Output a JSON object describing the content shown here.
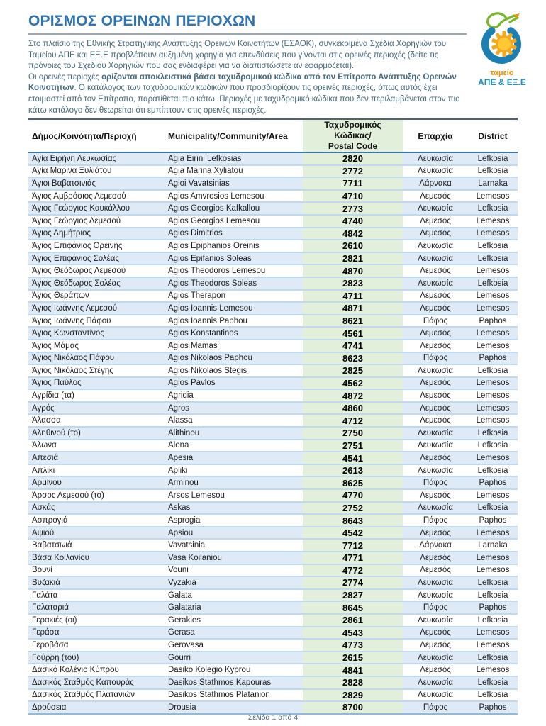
{
  "document": {
    "title": "ΟΡΙΣΜΟΣ ΟΡΕΙΝΩΝ ΠΕΡΙΟΧΩΝ",
    "intro": {
      "paragraph1": "Στο πλαίσιο της Εθνικής Στρατηγικής Ανάπτυξης Ορεινών Κοινοτήτων (ΕΣΑΟΚ), συγκεκριμένα Σχέδια Χορηγιών του Ταμείου ΑΠΕ και ΕΞ.Ε προβλέπουν αυξημένη χορηγία για επενδύσεις που γίνονται στις ορεινές περιοχές (δείτε τις πρόνοιες του Σχεδίου Χορηγιών που σας ενδιαφέρει για να διαπιστώσετε αν εφαρμόζεται).",
      "paragraph2_lead": "Οι ορεινές περιοχές ",
      "paragraph2_bold": "ορίζονται αποκλειστικά βάσει ταχυδρομικού κώδικα από τον Επίτροπο Ανάπτυξης Ορεινών Κοινοτήτων",
      "paragraph2_rest": ". Ο κατάλογος των ταχυδρομικών κωδικών που προσδιορίζουν τις ορεινές περιοχές, όπως αυτός έχει ετοιμαστεί από τον Επίτροπο, παρατίθεται πιο κάτω. Περιοχές με ταχυδρομικό κώδικα που δεν περιλαμβάνεται στον πιο κάτω κατάλογο δεν θεωρείται ότι εμπίπτουν στις ορεινές περιοχές."
    },
    "footer": {
      "page_indicator": "Σελίδα 1 από 4"
    }
  },
  "logo": {
    "line1": "ταμείο",
    "line2": "ΑΠΕ & ΕΞ.Ε",
    "colors": {
      "orange": "#F39200",
      "teal": "#1E8FBE",
      "green": "#76B82A",
      "blue": "#1B7FB4",
      "yellow": "#FFC933"
    }
  },
  "table": {
    "headers": {
      "greek_area": "Δήμος/Κοινότητα/Περιοχή",
      "english_area": "Municipality/Community/Area",
      "postal_line1": "Ταχυδρομικός Κώδικας/",
      "postal_line2": "Postal Code",
      "eparchia": "Επαρχία",
      "district": "District"
    },
    "rows": [
      [
        "Αγία Ειρήνη Λευκωσίας",
        "Agia Eirini Lefkosias",
        "2820",
        "Λευκωσία",
        "Lefkosia"
      ],
      [
        "Αγία Μαρίνα Ξυλιάτου",
        "Agia Marina Xyliatou",
        "2772",
        "Λευκωσία",
        "Lefkosia"
      ],
      [
        "Άγιοι Βαβατσινιάς",
        "Agioi Vavatsinias",
        "7711",
        "Λάρνακα",
        "Larnaka"
      ],
      [
        "Άγιος Αμβρόσιος Λεμεσού",
        "Agios Amvrosios Lemesou",
        "4710",
        "Λεμεσός",
        "Lemesos"
      ],
      [
        "Άγιος Γεώργιος Καυκάλλου",
        "Agios Georgios Kafkallou",
        "2773",
        "Λευκωσία",
        "Lefkosia"
      ],
      [
        "Άγιος Γεώργιος Λεμεσού",
        "Agios Georgios Lemesou",
        "4740",
        "Λεμεσός",
        "Lemesos"
      ],
      [
        "Άγιος Δημήτριος",
        "Agios Dimitrios",
        "4842",
        "Λεμεσός",
        "Lemesos"
      ],
      [
        "Άγιος Επιφάνιος Ορεινής",
        "Agios Epiphanios Oreinis",
        "2610",
        "Λευκωσία",
        "Lefkosia"
      ],
      [
        "Άγιος Επιφάνιος Σολέας",
        "Agios Epifanios Soleas",
        "2821",
        "Λευκωσία",
        "Lefkosia"
      ],
      [
        "Άγιος Θεόδωρος Λεμεσού",
        "Agios Theodoros Lemesou",
        "4870",
        "Λεμεσός",
        "Lemesos"
      ],
      [
        "Άγιος Θεόδωρος Σολέας",
        "Agios Theodoros Soleas",
        "2823",
        "Λευκωσία",
        "Lefkosia"
      ],
      [
        "Άγιος Θεράπων",
        "Agios Therapon",
        "4711",
        "Λεμεσός",
        "Lemesos"
      ],
      [
        "Άγιος Ιωάννης Λεμεσού",
        "Agios Ioannis Lemesou",
        "4871",
        "Λεμεσός",
        "Lemesos"
      ],
      [
        "Άγιος Ιωάννης Πάφου",
        "Agios Ioannis Paphou",
        "8621",
        "Πάφος",
        "Paphos"
      ],
      [
        "Άγιος Κωνσταντίνος",
        "Agios Konstantinos",
        "4561",
        "Λεμεσός",
        "Lemesos"
      ],
      [
        "Άγιος Μάμας",
        "Agios Mamas",
        "4741",
        "Λεμεσός",
        "Lemesos"
      ],
      [
        "Άγιος Νικόλαος Πάφου",
        "Agios Nikolaos Paphou",
        "8623",
        "Πάφος",
        "Paphos"
      ],
      [
        "Άγιος Νικόλαος Στέγης",
        "Agios Nikolaos Stegis",
        "2825",
        "Λευκωσία",
        "Lefkosia"
      ],
      [
        "Άγιος Παύλος",
        "Agios Pavlos",
        "4562",
        "Λεμεσός",
        "Lemesos"
      ],
      [
        "Αγρίδια (τα)",
        "Agridia",
        "4872",
        "Λεμεσός",
        "Lemesos"
      ],
      [
        "Αγρός",
        "Agros",
        "4860",
        "Λεμεσός",
        "Lemesos"
      ],
      [
        "Άλασσα",
        "Alassa",
        "4712",
        "Λεμεσός",
        "Lemesos"
      ],
      [
        "Αληθινού (το)",
        "Alithinou",
        "2750",
        "Λευκωσία",
        "Lefkosia"
      ],
      [
        "Άλωνα",
        "Alona",
        "2751",
        "Λευκωσία",
        "Lefkosia"
      ],
      [
        "Απεσιά",
        "Apesia",
        "4541",
        "Λεμεσός",
        "Lemesos"
      ],
      [
        "Απλίκι",
        "Apliki",
        "2613",
        "Λευκωσία",
        "Lefkosia"
      ],
      [
        "Αρμίνου",
        "Arminou",
        "8625",
        "Πάφος",
        "Paphos"
      ],
      [
        "Άρσος Λεμεσού (το)",
        "Arsos Lemesou",
        "4770",
        "Λεμεσός",
        "Lemesos"
      ],
      [
        "Ασκάς",
        "Askas",
        "2752",
        "Λευκωσία",
        "Lefkosia"
      ],
      [
        "Ασπρογιά",
        "Asprogia",
        "8643",
        "Πάφος",
        "Paphos"
      ],
      [
        "Αψιού",
        "Apsiou",
        "4542",
        "Λεμεσός",
        "Lemesos"
      ],
      [
        "Βαβατσινιά",
        "Vavatsinia",
        "7712",
        "Λάρνακα",
        "Larnaka"
      ],
      [
        "Βάσα Κοιλανίου",
        "Vasa Koilaniou",
        "4771",
        "Λεμεσός",
        "Lemesos"
      ],
      [
        "Βουνί",
        "Vouni",
        "4772",
        "Λεμεσός",
        "Lemesos"
      ],
      [
        "Βυζακιά",
        "Vyzakia",
        "2774",
        "Λευκωσία",
        "Lefkosia"
      ],
      [
        "Γαλάτα",
        "Galata",
        "2827",
        "Λευκωσία",
        "Lefkosia"
      ],
      [
        "Γαλαταριά",
        "Galataria",
        "8645",
        "Πάφος",
        "Paphos"
      ],
      [
        "Γερακιές (οι)",
        "Gerakies",
        "2861",
        "Λευκωσία",
        "Lefkosia"
      ],
      [
        "Γεράσα",
        "Gerasa",
        "4543",
        "Λεμεσός",
        "Lemesos"
      ],
      [
        "Γεροβάσα",
        "Gerovasa",
        "4773",
        "Λεμεσός",
        "Lemesos"
      ],
      [
        "Γούρρη (του)",
        "Gourri",
        "2615",
        "Λευκωσία",
        "Lefkosia"
      ],
      [
        "Δασικό Κολέγιο Κύπρου",
        "Dasiko Kolegio Kyprou",
        "4841",
        "Λεμεσός",
        "Lemesos"
      ],
      [
        "Δασικός Σταθμός Καπουράς",
        "Dasikos Stathmos Kapouras",
        "2828",
        "Λευκωσία",
        "Lefkosia"
      ],
      [
        "Δασικός Σταθμός Πλατανιών",
        "Dasikos Stathmos Platanion",
        "2829",
        "Λευκωσία",
        "Lefkosia"
      ],
      [
        "Δρούσεια",
        "Drousia",
        "8700",
        "Πάφος",
        "Paphos"
      ]
    ]
  },
  "colors": {
    "title_blue": "#2E74B5",
    "band_blue": "#DEEAF6",
    "postal_green": "#E2EFDA",
    "body_text_teal": "#44697D"
  }
}
